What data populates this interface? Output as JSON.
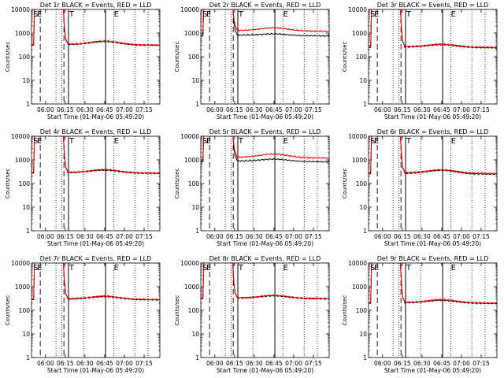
{
  "chart_data": [
    {
      "type": "line",
      "title": "Det 1r BLACK = Events, RED = LLD",
      "xlabel": "Start Time (01-May-06 05:49:20)",
      "ylabel": "Counts/sec",
      "x_ticks": [
        "06:00",
        "06:15",
        "06:30",
        "06:45",
        "07:00",
        "07:15"
      ],
      "y_ticks": [
        "1",
        "10",
        "100",
        "1000",
        "10000"
      ],
      "ylim": [
        1,
        10000
      ],
      "letters": [
        "S",
        "E",
        "T",
        "E"
      ],
      "events_level": 330,
      "lld_level": 340,
      "events_peak": 450,
      "lld_peak": 470,
      "series": [
        {
          "name": "Events",
          "color": "#000000"
        },
        {
          "name": "LLD",
          "color": "#ff0000"
        }
      ]
    },
    {
      "type": "line",
      "title": "Det 2r BLACK = Events, RED = LLD",
      "xlabel": "Start Time (01-May-06 05:49:20)",
      "ylabel": "Counts/sec",
      "x_ticks": [
        "06:00",
        "06:15",
        "06:30",
        "06:45",
        "07:00",
        "07:15"
      ],
      "y_ticks": [
        "1",
        "10",
        "100",
        "1000",
        "10000"
      ],
      "ylim": [
        1,
        10000
      ],
      "letters": [
        "S",
        "E",
        "T",
        "E"
      ],
      "events_level": 820,
      "lld_level": 1300,
      "events_peak": 950,
      "lld_peak": 1700,
      "series": [
        {
          "name": "Events",
          "color": "#000000"
        },
        {
          "name": "LLD",
          "color": "#ff0000"
        }
      ]
    },
    {
      "type": "line",
      "title": "Det 3r BLACK = Events, RED = LLD",
      "xlabel": "Start Time (01-May-06 05:49:20)",
      "ylabel": "Counts/sec",
      "x_ticks": [
        "06:00",
        "06:15",
        "06:30",
        "06:45",
        "07:00",
        "07:15"
      ],
      "y_ticks": [
        "1",
        "10",
        "100",
        "1000",
        "10000"
      ],
      "ylim": [
        1,
        10000
      ],
      "letters": [
        "S",
        "E",
        "T",
        "E"
      ],
      "events_level": 260,
      "lld_level": 270,
      "events_peak": 330,
      "lld_peak": 350,
      "series": [
        {
          "name": "Events",
          "color": "#000000"
        },
        {
          "name": "LLD",
          "color": "#ff0000"
        }
      ]
    },
    {
      "type": "line",
      "title": "Det 4r BLACK = Events, RED = LLD",
      "xlabel": "Start Time (01-May-06 05:49:20)",
      "ylabel": "Counts/sec",
      "x_ticks": [
        "06:00",
        "06:15",
        "06:30",
        "06:45",
        "07:00",
        "07:15"
      ],
      "y_ticks": [
        "1",
        "10",
        "100",
        "1000",
        "10000"
      ],
      "ylim": [
        1,
        10000
      ],
      "letters": [
        "S",
        "E",
        "T",
        "E"
      ],
      "events_level": 290,
      "lld_level": 300,
      "events_peak": 380,
      "lld_peak": 400,
      "series": [
        {
          "name": "Events",
          "color": "#000000"
        },
        {
          "name": "LLD",
          "color": "#ff0000"
        }
      ]
    },
    {
      "type": "line",
      "title": "Det 5r BLACK = Events, RED = LLD",
      "xlabel": "Start Time (01-May-06 05:49:20)",
      "ylabel": "Counts/sec",
      "x_ticks": [
        "06:00",
        "06:15",
        "06:30",
        "06:45",
        "07:00",
        "07:15"
      ],
      "y_ticks": [
        "1",
        "10",
        "100",
        "1000",
        "10000"
      ],
      "ylim": [
        1,
        10000
      ],
      "letters": [
        "S",
        "E",
        "T",
        "E"
      ],
      "events_level": 900,
      "lld_level": 1300,
      "events_peak": 1100,
      "lld_peak": 1800,
      "series": [
        {
          "name": "Events",
          "color": "#000000"
        },
        {
          "name": "LLD",
          "color": "#ff0000"
        }
      ]
    },
    {
      "type": "line",
      "title": "Det 6r BLACK = Events, RED = LLD",
      "xlabel": "Start Time (01-May-06 05:49:20)",
      "ylabel": "Counts/sec",
      "x_ticks": [
        "06:00",
        "06:15",
        "06:30",
        "06:45",
        "07:00",
        "07:15"
      ],
      "y_ticks": [
        "1",
        "10",
        "100",
        "1000",
        "10000"
      ],
      "ylim": [
        1,
        10000
      ],
      "letters": [
        "S",
        "E",
        "T",
        "E"
      ],
      "events_level": 270,
      "lld_level": 290,
      "events_peak": 370,
      "lld_peak": 390,
      "series": [
        {
          "name": "Events",
          "color": "#000000"
        },
        {
          "name": "LLD",
          "color": "#ff0000"
        }
      ]
    },
    {
      "type": "line",
      "title": "Det 7r BLACK = Events, RED = LLD",
      "xlabel": "Start Time (01-May-06 05:49:20)",
      "ylabel": "Counts/sec",
      "x_ticks": [
        "06:00",
        "06:15",
        "06:30",
        "06:45",
        "07:00",
        "07:15"
      ],
      "y_ticks": [
        "1",
        "10",
        "100",
        "1000",
        "10000"
      ],
      "ylim": [
        1,
        10000
      ],
      "letters": [
        "S",
        "E",
        "T",
        "E"
      ],
      "events_level": 300,
      "lld_level": 310,
      "events_peak": 390,
      "lld_peak": 410,
      "series": [
        {
          "name": "Events",
          "color": "#000000"
        },
        {
          "name": "LLD",
          "color": "#ff0000"
        }
      ]
    },
    {
      "type": "line",
      "title": "Det 8r BLACK = Events, RED = LLD",
      "xlabel": "Start Time (01-May-06 05:49:20)",
      "ylabel": "Counts/sec",
      "x_ticks": [
        "06:00",
        "06:15",
        "06:30",
        "06:45",
        "07:00",
        "07:15"
      ],
      "y_ticks": [
        "1",
        "10",
        "100",
        "1000",
        "10000"
      ],
      "ylim": [
        1,
        10000
      ],
      "letters": [
        "S",
        "E",
        "T",
        "E"
      ],
      "events_level": 330,
      "lld_level": 340,
      "events_peak": 420,
      "lld_peak": 440,
      "series": [
        {
          "name": "Events",
          "color": "#000000"
        },
        {
          "name": "LLD",
          "color": "#ff0000"
        }
      ]
    },
    {
      "type": "line",
      "title": "Det 9r BLACK = Events, RED = LLD",
      "xlabel": "Start Time (01-May-06 05:49:20)",
      "ylabel": "Counts/sec",
      "x_ticks": [
        "06:00",
        "06:15",
        "06:30",
        "06:45",
        "07:00",
        "07:15"
      ],
      "y_ticks": [
        "1",
        "10",
        "100",
        "1000",
        "10000"
      ],
      "ylim": [
        1,
        10000
      ],
      "letters": [
        "S",
        "E",
        "T",
        "E"
      ],
      "events_level": 210,
      "lld_level": 220,
      "events_peak": 270,
      "lld_peak": 290,
      "series": [
        {
          "name": "Events",
          "color": "#000000"
        },
        {
          "name": "LLD",
          "color": "#ff0000"
        }
      ]
    }
  ]
}
